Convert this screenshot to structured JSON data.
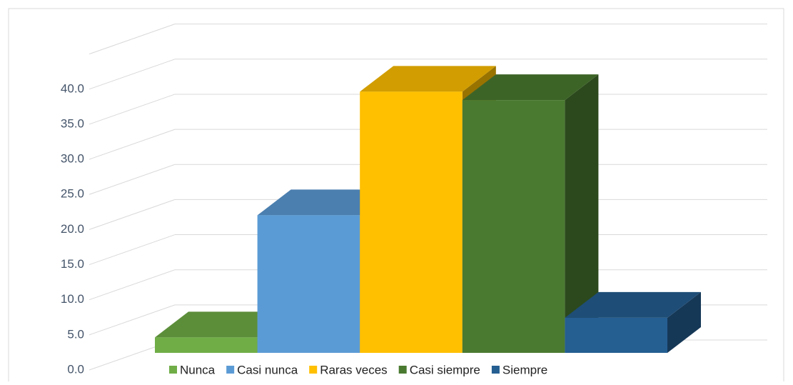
{
  "chart_data": {
    "type": "bar3d",
    "series": [
      {
        "name": "Nunca",
        "color": "#70ad47",
        "values": [
          2.2
        ]
      },
      {
        "name": "Casi nunca",
        "color": "#5b9bd5",
        "values": [
          19.6
        ]
      },
      {
        "name": "Raras veces",
        "color": "#ffc000",
        "values": [
          37.2
        ]
      },
      {
        "name": "Casi siempre",
        "color": "#4a7a30",
        "values": [
          36.0
        ]
      },
      {
        "name": "Siempre",
        "color": "#255e91",
        "values": [
          5.0
        ]
      }
    ],
    "ylim": [
      0,
      45
    ],
    "yticks": [
      {
        "value": 0,
        "label": "0.0"
      },
      {
        "value": 5,
        "label": "5.0"
      },
      {
        "value": 10,
        "label": "10.0"
      },
      {
        "value": 15,
        "label": "15.0"
      },
      {
        "value": 20,
        "label": "20.0"
      },
      {
        "value": 25,
        "label": "25.0"
      },
      {
        "value": 30,
        "label": "30.0"
      },
      {
        "value": 35,
        "label": "35.0"
      },
      {
        "value": 40,
        "label": "40.0"
      }
    ],
    "grid": true,
    "legend": "bottom"
  }
}
